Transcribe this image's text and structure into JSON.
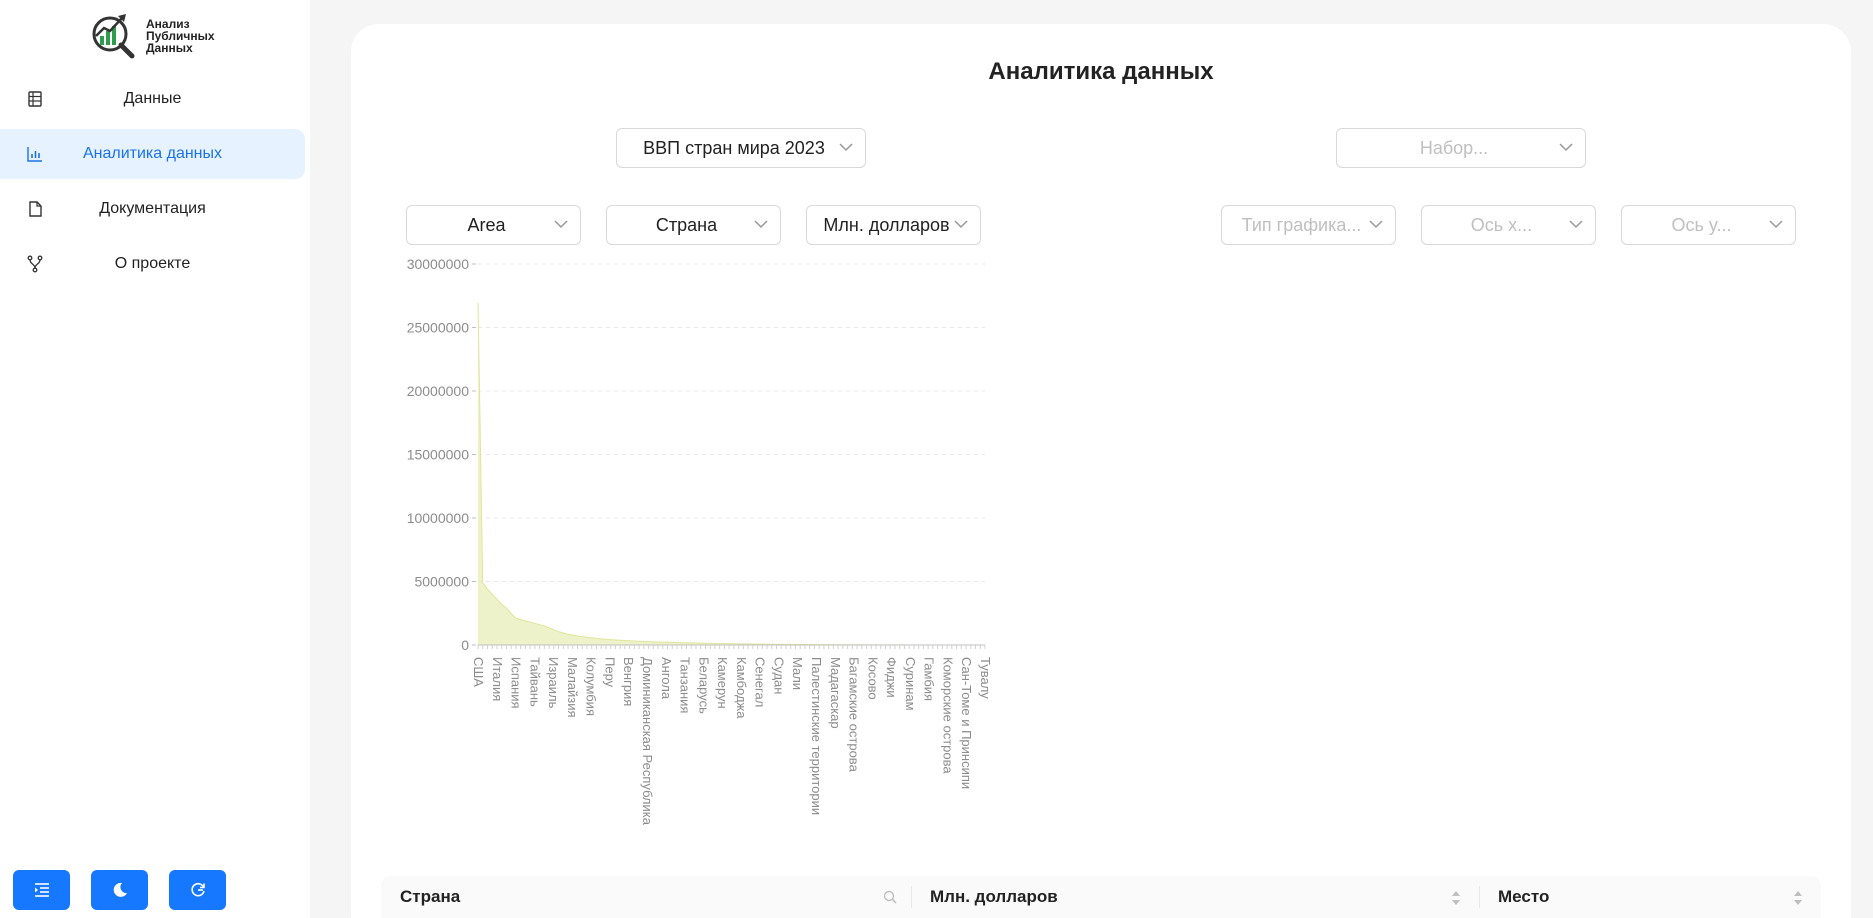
{
  "logo": {
    "line1": "Анализ",
    "line2": "Публичных",
    "line3": "Данных"
  },
  "sidebar": {
    "items": [
      {
        "label": "Данные",
        "icon": "table-icon"
      },
      {
        "label": "Аналитика данных",
        "icon": "bar-chart-icon",
        "active": true
      },
      {
        "label": "Документация",
        "icon": "file-icon"
      },
      {
        "label": "О проекте",
        "icon": "fork-icon"
      }
    ],
    "bottom_buttons": [
      "menu-collapse-icon",
      "moon-icon",
      "refresh-icon"
    ]
  },
  "main": {
    "title": "Аналитика данных",
    "dataset_select": "ВВП стран мира 2023",
    "set_select_placeholder": "Набор...",
    "chart_type_select": "Area",
    "x_select": "Страна",
    "y_select": "Млн. долларов",
    "chart_type_placeholder": "Тип графика...",
    "x_axis_placeholder": "Ось x...",
    "y_axis_placeholder": "Ось y..."
  },
  "chart_data": {
    "type": "area",
    "x_field": "Страна",
    "y_field": "Млн. долларов",
    "ylim": [
      0,
      30000000
    ],
    "yticks": [
      "30000000",
      "25000000",
      "20000000",
      "15000000",
      "10000000",
      "5000000",
      "0"
    ],
    "grid": true,
    "color": "#e8edb8",
    "category_labels": [
      "США",
      "Италия",
      "Испания",
      "Тайвань",
      "Израиль",
      "Малайзия",
      "Колумбия",
      "Перу",
      "Венгрия",
      "Доминиканская Республика",
      "Ангола",
      "Танзания",
      "Беларусь",
      "Камерун",
      "Камбоджа",
      "Сенегал",
      "Судан",
      "Мали",
      "Палестинские территории",
      "Мадагаскар",
      "Багамские острова",
      "Косово",
      "Фиджи",
      "Суринам",
      "Гамбия",
      "Коморские острова",
      "Сан-Томе и Принсипи",
      "Тувалу"
    ],
    "values": [
      26950000,
      4900000,
      4400000,
      4000000,
      3600000,
      3200000,
      2900000,
      2500000,
      2100000,
      2000000,
      1900000,
      1800000,
      1700000,
      1600000,
      1500000,
      1350000,
      1200000,
      1050000,
      950000,
      850000,
      780000,
      720000,
      660000,
      610000,
      560000,
      520000,
      480000,
      450000,
      420000,
      395000,
      370000,
      350000,
      330000,
      310000,
      295000,
      280000,
      265000,
      250000,
      238000,
      226000,
      214000,
      203000,
      192000,
      182000,
      172000,
      163000,
      154000,
      146000,
      138000,
      130000,
      123000,
      116000,
      110000,
      104000,
      98000,
      92000,
      87000,
      82000,
      77000,
      72000,
      68000,
      64000,
      60000,
      56000,
      53000,
      50000,
      47000,
      44000,
      41000,
      38000,
      35000,
      33000,
      31000,
      29000,
      27000,
      25000,
      23000,
      21000,
      19500,
      18000,
      16500,
      15000,
      13500,
      12000,
      11000,
      10000,
      9000,
      8000,
      7200,
      6500,
      5800,
      5100,
      4500,
      3900,
      3400,
      2900,
      2500,
      2100,
      1800,
      1500,
      1200,
      1000,
      800,
      600,
      400,
      250,
      150,
      60
    ]
  },
  "table": {
    "columns": [
      {
        "label": "Страна",
        "icon": "search-icon"
      },
      {
        "label": "Млн. долларов",
        "icon": "sort-icon"
      },
      {
        "label": "Место",
        "icon": "sort-icon"
      }
    ]
  }
}
